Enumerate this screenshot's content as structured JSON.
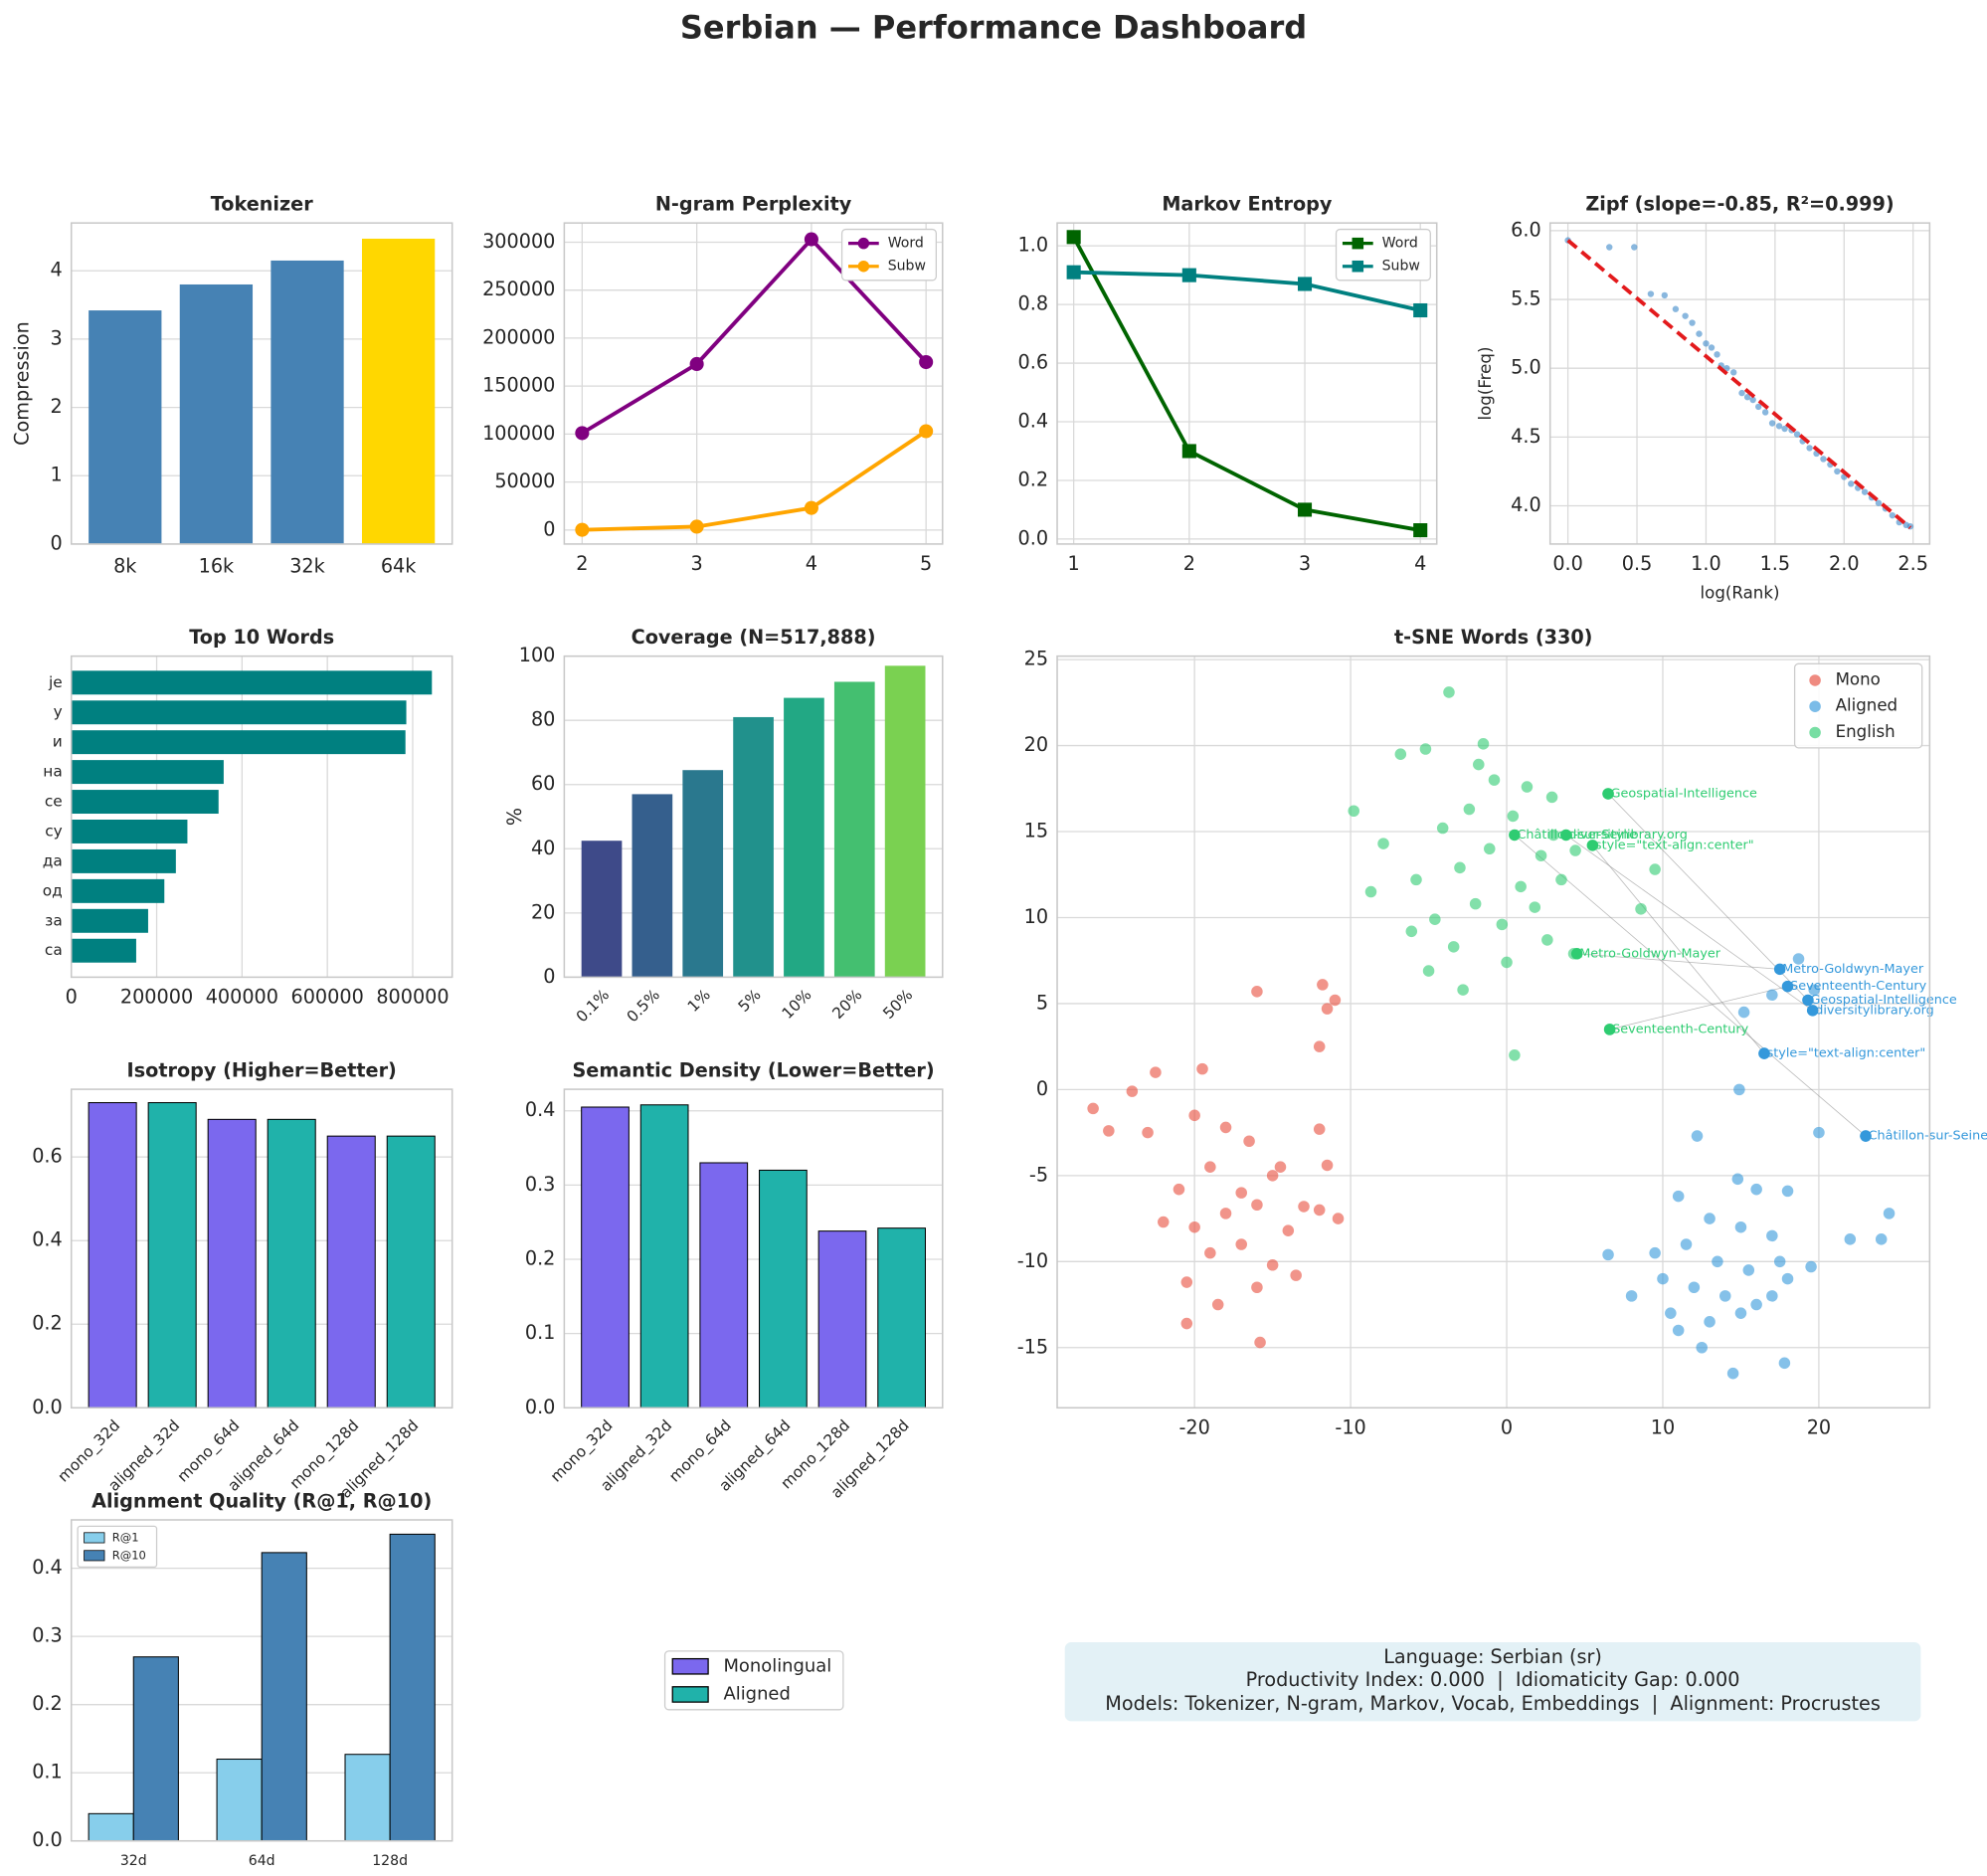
{
  "title": "Serbian — Performance Dashboard",
  "chart_data": [
    {
      "type": "bar",
      "title": "Tokenizer",
      "ylabel": "Compression",
      "categories": [
        "8k",
        "16k",
        "32k",
        "64k"
      ],
      "values": [
        3.42,
        3.8,
        4.15,
        4.47
      ],
      "colors": [
        "#4682b4",
        "#4682b4",
        "#4682b4",
        "#ffd700"
      ],
      "ylim": [
        0,
        4.7
      ],
      "yticks": [
        0,
        1,
        2,
        3,
        4
      ],
      "grid": true
    },
    {
      "type": "line",
      "title": "N-gram Perplexity",
      "marker": "circle",
      "legend": "upper right",
      "x": [
        2,
        3,
        4,
        5
      ],
      "xlim": [
        1.844,
        5.144
      ],
      "xticks": [
        2,
        3,
        4,
        5
      ],
      "ylim": [
        -14600,
        320000
      ],
      "yticks": [
        0,
        50000,
        100000,
        150000,
        200000,
        250000,
        300000
      ],
      "series": [
        {
          "name": "Word",
          "color": "#800080",
          "values": [
            101000,
            173000,
            303000,
            175000
          ]
        },
        {
          "name": "Subw",
          "color": "#ffa500",
          "values": [
            200,
            3500,
            23000,
            103000
          ]
        }
      ],
      "grid": true
    },
    {
      "type": "line",
      "title": "Markov Entropy",
      "marker": "square",
      "legend": "upper right",
      "x": [
        1,
        2,
        3,
        4
      ],
      "xlim": [
        0.857,
        4.142
      ],
      "xticks": [
        1,
        2,
        3,
        4
      ],
      "ylim": [
        -0.017,
        1.078
      ],
      "yticks": [
        {
          "value": 0,
          "label": "0.0"
        },
        0.2,
        0.4,
        0.6,
        0.8,
        {
          "value": 1,
          "label": "1.0"
        }
      ],
      "series": [
        {
          "name": "Word",
          "color": "#006400",
          "values": [
            1.03,
            0.3,
            0.1,
            0.03
          ]
        },
        {
          "name": "Subw",
          "color": "#008080",
          "values": [
            0.91,
            0.9,
            0.87,
            0.78
          ]
        }
      ],
      "grid": true
    },
    {
      "type": "scatter",
      "title": "Zipf (slope=-0.85, R²=0.999)",
      "xlabel": "log(Rank)",
      "ylabel": "log(Freq)",
      "xlim": [
        -0.129,
        2.62
      ],
      "xticks": [
        {
          "value": 0,
          "label": "0.0"
        },
        0.5,
        {
          "value": 1,
          "label": "1.0"
        },
        1.5,
        {
          "value": 2,
          "label": "2.0"
        },
        2.5
      ],
      "ylim": [
        3.722,
        6.056
      ],
      "yticks": [
        {
          "value": 4,
          "label": "4.0"
        },
        4.5,
        {
          "value": 5,
          "label": "5.0"
        },
        5.5,
        {
          "value": 6,
          "label": "6.0"
        }
      ],
      "series": [
        {
          "color": "#3a87c8",
          "x": [
            0,
            0.3,
            0.48,
            0.6,
            0.7,
            0.78,
            0.85,
            0.9,
            0.95,
            1.0,
            1.04,
            1.08,
            1.11,
            1.15,
            1.2,
            1.26,
            1.3,
            1.34,
            1.38,
            1.43,
            1.48,
            1.53,
            1.57,
            1.62,
            1.66,
            1.7,
            1.75,
            1.8,
            1.85,
            1.9,
            1.95,
            2.0,
            2.05,
            2.1,
            2.15,
            2.2,
            2.25,
            2.3,
            2.35,
            2.4,
            2.45,
            2.48
          ],
          "y": [
            5.93,
            5.88,
            5.88,
            5.54,
            5.53,
            5.43,
            5.38,
            5.33,
            5.25,
            5.18,
            5.15,
            5.1,
            5.02,
            5.0,
            4.97,
            4.82,
            4.79,
            4.77,
            4.72,
            4.68,
            4.6,
            4.58,
            4.56,
            4.55,
            4.52,
            4.47,
            4.42,
            4.38,
            4.34,
            4.3,
            4.25,
            4.21,
            4.16,
            4.13,
            4.1,
            4.06,
            4.02,
            3.98,
            3.93,
            3.88,
            3.86,
            3.85
          ]
        }
      ],
      "fit": {
        "color": "#e31a1c",
        "x": [
          0,
          2.48
        ],
        "y": [
          5.93,
          3.84
        ]
      },
      "grid": true
    },
    {
      "type": "barh",
      "title": "Top 10 Words",
      "categories": [
        "je",
        "у",
        "и",
        "на",
        "се",
        "су",
        "да",
        "од",
        "за",
        "са"
      ],
      "values": [
        845000,
        785000,
        783000,
        357000,
        345000,
        272000,
        245000,
        218000,
        180000,
        152000
      ],
      "color": "#008080",
      "xlim": [
        0,
        892500
      ],
      "xticks": [
        0,
        200000,
        400000,
        600000,
        800000
      ],
      "grid": true
    },
    {
      "type": "bar",
      "title": "Coverage (N=517,888)",
      "ylabel": "%",
      "xtick_rotation": 45,
      "categories": [
        "0.1%",
        "0.5%",
        "1%",
        "5%",
        "10%",
        "20%",
        "50%"
      ],
      "values": [
        42.5,
        57,
        64.5,
        81,
        87,
        92,
        97
      ],
      "colors": [
        "#3e4a89",
        "#355f8d",
        "#2a788e",
        "#21918c",
        "#22a884",
        "#44bf70",
        "#7ad151"
      ],
      "ylim": [
        0,
        100
      ],
      "yticks": [
        0,
        20,
        40,
        60,
        80,
        100
      ],
      "grid": true
    },
    {
      "type": "scatter",
      "title": "t-SNE Words (330)",
      "legend": "upper right",
      "xlim": [
        -28.8,
        27.1
      ],
      "xticks": [
        -20,
        -10,
        0,
        10,
        20
      ],
      "ylim": [
        -18.5,
        25.2
      ],
      "yticks": [
        -15,
        -10,
        -5,
        0,
        5,
        10,
        15,
        20,
        25
      ],
      "series": [
        {
          "name": "Mono",
          "color": "#e74c3c",
          "x": [
            -16,
            -11.8,
            -11.5,
            -11,
            -12,
            -19.5,
            -22.5,
            -24,
            -26.5,
            -25.5,
            -23,
            -20,
            -18,
            -16.5,
            -14.5,
            -12,
            -21,
            -19,
            -17,
            -15,
            -13,
            -11.5,
            -22,
            -20,
            -18,
            -16,
            -14,
            -12,
            -10.8,
            -19,
            -17,
            -15,
            -13.5,
            -20.5,
            -16,
            -18.5,
            -15.8,
            -20.5
          ],
          "y": [
            5.7,
            6.1,
            4.7,
            5.2,
            2.5,
            1.2,
            1.0,
            -0.1,
            -1.1,
            -2.4,
            -2.5,
            -1.5,
            -2.2,
            -3.0,
            -4.5,
            -2.3,
            -5.8,
            -4.5,
            -6.0,
            -5.0,
            -6.8,
            -4.4,
            -7.7,
            -8.0,
            -7.2,
            -6.7,
            -8.2,
            -7.0,
            -7.5,
            -9.5,
            -9.0,
            -10.2,
            -10.8,
            -11.2,
            -11.5,
            -12.5,
            -14.7,
            -13.6
          ]
        },
        {
          "name": "Aligned",
          "color": "#3498db",
          "x": [
            12.2,
            14.8,
            11,
            16,
            18,
            20,
            22,
            24.5,
            24,
            13,
            15,
            17,
            9.5,
            11.5,
            13.5,
            15.5,
            17.5,
            19.5,
            10,
            12,
            14,
            16,
            18,
            8,
            10.5,
            13,
            15,
            17,
            11,
            12.5,
            14.5,
            6.5,
            17.8,
            15.2,
            17,
            18.7,
            19.7,
            16.5,
            14.9,
            23
          ],
          "y": [
            -2.7,
            -5.2,
            -6.2,
            -5.8,
            -5.9,
            -2.5,
            -8.7,
            -7.2,
            -8.7,
            -7.5,
            -8,
            -8.5,
            -9.5,
            -9,
            -10,
            -10.5,
            -10,
            -10.3,
            -11,
            -11.5,
            -12,
            -12.5,
            -11,
            -12,
            -13,
            -13.5,
            -13,
            -12,
            -14,
            -15,
            -16.5,
            -9.6,
            -15.9,
            4.5,
            5.5,
            7.6,
            5.8,
            2.1,
            0.0,
            -2.7
          ]
        },
        {
          "name": "English",
          "color": "#2ecc71",
          "x": [
            -1.5,
            -3.7,
            -5.2,
            -0.8,
            1.3,
            2.9,
            -6.8,
            -2.4,
            0.4,
            -4.1,
            -7.9,
            -1.1,
            2.2,
            -3.0,
            -5.8,
            0.9,
            3.5,
            -8.7,
            -2.0,
            1.8,
            -4.6,
            -0.3,
            -6.1,
            2.6,
            -3.4,
            0.0,
            -9.8,
            -1.8,
            4.4,
            3.0,
            6.5,
            9.5,
            8.6,
            4.3,
            6.6,
            0.5,
            -2.8,
            -5.0
          ],
          "y": [
            20.1,
            23.1,
            19.8,
            18.0,
            17.6,
            17.0,
            19.5,
            16.3,
            15.9,
            15.2,
            14.3,
            14.0,
            13.6,
            12.9,
            12.2,
            11.8,
            12.2,
            11.5,
            10.8,
            10.6,
            9.9,
            9.6,
            9.2,
            8.7,
            8.3,
            7.4,
            16.2,
            18.9,
            13.9,
            14.8,
            17.2,
            12.8,
            10.5,
            7.9,
            3.5,
            2.0,
            5.8,
            6.9
          ]
        }
      ],
      "annotations": [
        {
          "label": "Geospatial-Intelligence",
          "en_x": 6.5,
          "en_y": 17.2,
          "al_x": 19.3,
          "al_y": 5.2
        },
        {
          "label": "Châtillon-sur-Seine",
          "en_x": 0.5,
          "en_y": 14.8,
          "al_x": 23,
          "al_y": -2.7
        },
        {
          "label": "diversitylibrary.org",
          "en_x": 3.8,
          "en_y": 14.8,
          "al_x": 19.6,
          "al_y": 4.6
        },
        {
          "label": "style=\"text-align:center\"",
          "en_x": 5.5,
          "en_y": 14.2,
          "al_x": 16.5,
          "al_y": 2.1
        },
        {
          "label": "Metro-Goldwyn-Mayer",
          "en_x": 4.5,
          "en_y": 7.9,
          "al_x": 17.5,
          "al_y": 7.0
        },
        {
          "label": "Seventeenth-Century",
          "en_x": 6.6,
          "en_y": 3.5,
          "al_x": 18.0,
          "al_y": 6.0
        }
      ],
      "grid": true
    },
    {
      "type": "bar",
      "title": "Isotropy (Higher=Better)",
      "xtick_rotation": 45,
      "edgecolor": "#000000",
      "categories": [
        "mono_32d",
        "aligned_32d",
        "mono_64d",
        "aligned_64d",
        "mono_128d",
        "aligned_128d"
      ],
      "values": [
        0.73,
        0.73,
        0.69,
        0.69,
        0.65,
        0.65
      ],
      "colors": [
        "#7b68ee",
        "#20b2aa",
        "#7b68ee",
        "#20b2aa",
        "#7b68ee",
        "#20b2aa"
      ],
      "ylim": [
        0,
        0.762
      ],
      "yticks": [
        {
          "value": 0,
          "label": "0.0"
        },
        0.2,
        0.4,
        0.6
      ],
      "grid": true
    },
    {
      "type": "bar",
      "title": "Semantic Density (Lower=Better)",
      "xtick_rotation": 45,
      "edgecolor": "#000000",
      "categories": [
        "mono_32d",
        "aligned_32d",
        "mono_64d",
        "aligned_64d",
        "mono_128d",
        "aligned_128d"
      ],
      "values": [
        0.405,
        0.408,
        0.33,
        0.32,
        0.238,
        0.242
      ],
      "colors": [
        "#7b68ee",
        "#20b2aa",
        "#7b68ee",
        "#20b2aa",
        "#7b68ee",
        "#20b2aa"
      ],
      "ylim": [
        0,
        0.429
      ],
      "yticks": [
        {
          "value": 0,
          "label": "0.0"
        },
        0.1,
        0.2,
        0.3,
        0.4
      ],
      "grid": true
    },
    {
      "type": "grouped_bar",
      "title": "Alignment Quality (R@1, R@10)",
      "legend": "upper left",
      "edgecolor": "#000000",
      "categories": [
        "32d",
        "64d",
        "128d"
      ],
      "series": [
        {
          "name": "R@1",
          "color": "#87ceeb",
          "values": [
            0.04,
            0.12,
            0.127
          ]
        },
        {
          "name": "R@10",
          "color": "#4682b4",
          "values": [
            0.27,
            0.423,
            0.45
          ]
        }
      ],
      "ylim": [
        0,
        0.471
      ],
      "yticks": [
        {
          "value": 0,
          "label": "0.0"
        },
        0.1,
        0.2,
        0.3,
        0.4
      ],
      "grid": true
    },
    {
      "type": "legend",
      "edgecolor": "#000000",
      "series": [
        {
          "name": "Monolingual",
          "color": "#7b68ee"
        },
        {
          "name": "Aligned",
          "color": "#20b2aa"
        }
      ]
    }
  ],
  "info_box": {
    "lines": [
      "Language: Serbian (sr)",
      "Productivity Index: 0.000  |  Idiomaticity Gap: 0.000",
      "Models: Tokenizer, N-gram, Markov, Vocab, Embeddings  |  Alignment: Procrustes"
    ]
  }
}
